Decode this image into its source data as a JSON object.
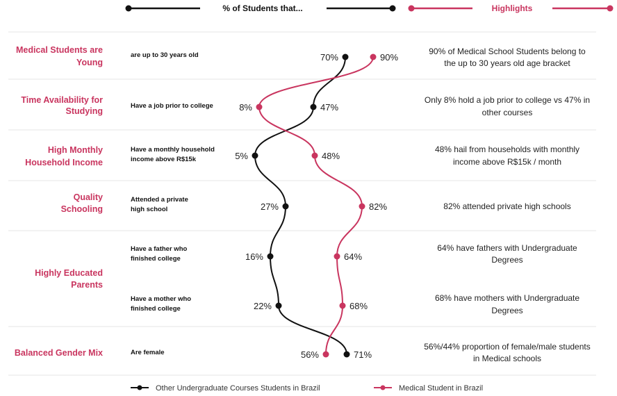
{
  "colors": {
    "other": "#111111",
    "medical": "#c9355f",
    "separator": "#e4e4e4"
  },
  "header": {
    "left_title": "% of Students that...",
    "right_title": "Highlights"
  },
  "chart_data": {
    "type": "line",
    "orientation": "slope-comparison",
    "unit": "%",
    "series": [
      {
        "name": "Other Undergraduate Courses Students in Brazil",
        "values": [
          70,
          47,
          5,
          27,
          16,
          22,
          71
        ]
      },
      {
        "name": "Medical Student in Brazil",
        "values": [
          90,
          8,
          48,
          82,
          64,
          68,
          56
        ]
      }
    ],
    "value_labels": {
      "other": [
        "70%",
        "47%",
        "5%",
        "27%",
        "16%",
        "22%",
        "71%"
      ],
      "medical": [
        "90%",
        "8%",
        "48%",
        "82%",
        "64%",
        "68%",
        "56%"
      ]
    },
    "rows": [
      {
        "category": [
          "Medical Students are",
          "Young"
        ],
        "description": [
          "are up to 30 years old"
        ],
        "highlight": [
          "90% of Medical School Students belong to",
          "the up to 30 years old age bracket"
        ]
      },
      {
        "category": [
          "Time Availability for",
          "Studying"
        ],
        "description": [
          "Have a job prior to college"
        ],
        "highlight": [
          "Only 8% hold a job prior to college vs 47% in",
          "other courses"
        ]
      },
      {
        "category": [
          "High Monthly",
          "Household Income"
        ],
        "description": [
          "Have a monthly household",
          "income above R$15k"
        ],
        "highlight": [
          "48% hail from households with monthly",
          "income above R$15k / month"
        ]
      },
      {
        "category": [
          "Quality",
          "Schooling"
        ],
        "description": [
          "Attended a private",
          "high school"
        ],
        "highlight": [
          "82% attended private high schools"
        ]
      },
      {
        "category": [],
        "description": [
          "Have a father who",
          "finished college"
        ],
        "highlight": [
          "64% have fathers with Undergraduate",
          "Degrees"
        ]
      },
      {
        "category": [],
        "description": [
          "Have a mother who",
          "finished college"
        ],
        "highlight": [
          "68% have mothers with Undergraduate",
          "Degrees"
        ]
      },
      {
        "category": [
          "Balanced Gender Mix"
        ],
        "description": [
          "Are female"
        ],
        "highlight": [
          "56%/44% proportion of female/male students",
          "in Medical schools"
        ]
      }
    ],
    "group_labels": [
      {
        "text": [
          "Highly Educated",
          "Parents"
        ],
        "rows": [
          4,
          5
        ]
      }
    ],
    "legend": [
      {
        "label": "Other Undergraduate Courses Students in Brazil",
        "series": "other"
      },
      {
        "label": "Medical Student in Brazil",
        "series": "medical"
      }
    ]
  }
}
